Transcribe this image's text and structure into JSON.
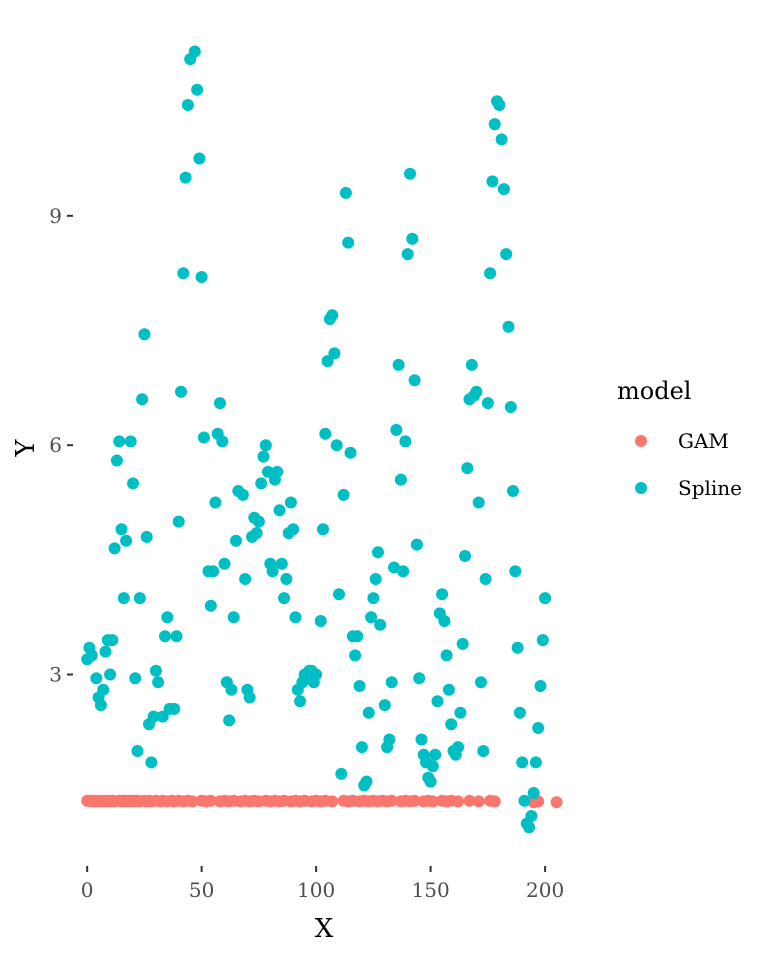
{
  "chart_data": {
    "type": "scatter",
    "xlabel": "X",
    "ylabel": "Y",
    "xlim": [
      -4,
      210
    ],
    "ylim": [
      0.6,
      11.3
    ],
    "x_ticks": [
      0,
      50,
      100,
      150,
      200
    ],
    "y_ticks": [
      3,
      6,
      9
    ],
    "grid": false,
    "legend": {
      "title": "model",
      "position": "right"
    },
    "series": [
      {
        "name": "GAM",
        "color": "#F8766D",
        "points": [
          [
            0,
            1.35
          ],
          [
            1,
            1.35
          ],
          [
            2,
            1.34
          ],
          [
            3,
            1.35
          ],
          [
            4,
            1.34
          ],
          [
            5,
            1.35
          ],
          [
            6,
            1.34
          ],
          [
            7,
            1.35
          ],
          [
            8,
            1.34
          ],
          [
            9,
            1.35
          ],
          [
            10,
            1.34
          ],
          [
            11,
            1.35
          ],
          [
            12,
            1.34
          ],
          [
            14,
            1.35
          ],
          [
            15,
            1.34
          ],
          [
            16,
            1.35
          ],
          [
            17,
            1.34
          ],
          [
            18,
            1.35
          ],
          [
            19,
            1.34
          ],
          [
            20,
            1.35
          ],
          [
            21,
            1.34
          ],
          [
            22,
            1.35
          ],
          [
            23,
            1.34
          ],
          [
            25,
            1.35
          ],
          [
            26,
            1.34
          ],
          [
            27,
            1.35
          ],
          [
            28,
            1.34
          ],
          [
            30,
            1.35
          ],
          [
            32,
            1.34
          ],
          [
            33,
            1.35
          ],
          [
            35,
            1.34
          ],
          [
            37,
            1.35
          ],
          [
            38,
            1.34
          ],
          [
            40,
            1.35
          ],
          [
            42,
            1.34
          ],
          [
            44,
            1.35
          ],
          [
            46,
            1.34
          ],
          [
            50,
            1.35
          ],
          [
            52,
            1.34
          ],
          [
            54,
            1.35
          ],
          [
            58,
            1.34
          ],
          [
            60,
            1.35
          ],
          [
            62,
            1.34
          ],
          [
            64,
            1.35
          ],
          [
            67,
            1.34
          ],
          [
            69,
            1.35
          ],
          [
            71,
            1.34
          ],
          [
            73,
            1.35
          ],
          [
            75,
            1.34
          ],
          [
            78,
            1.35
          ],
          [
            80,
            1.34
          ],
          [
            82,
            1.35
          ],
          [
            84,
            1.34
          ],
          [
            86,
            1.35
          ],
          [
            89,
            1.34
          ],
          [
            91,
            1.35
          ],
          [
            93,
            1.34
          ],
          [
            95,
            1.35
          ],
          [
            98,
            1.34
          ],
          [
            100,
            1.35
          ],
          [
            102,
            1.34
          ],
          [
            104,
            1.35
          ],
          [
            107,
            1.34
          ],
          [
            112,
            1.35
          ],
          [
            114,
            1.34
          ],
          [
            116,
            1.35
          ],
          [
            119,
            1.34
          ],
          [
            121,
            1.35
          ],
          [
            123,
            1.34
          ],
          [
            125,
            1.35
          ],
          [
            127,
            1.34
          ],
          [
            129,
            1.35
          ],
          [
            131,
            1.34
          ],
          [
            133,
            1.35
          ],
          [
            137,
            1.34
          ],
          [
            139,
            1.35
          ],
          [
            141,
            1.34
          ],
          [
            143,
            1.35
          ],
          [
            147,
            1.34
          ],
          [
            149,
            1.35
          ],
          [
            151,
            1.34
          ],
          [
            155,
            1.35
          ],
          [
            157,
            1.34
          ],
          [
            159,
            1.35
          ],
          [
            162,
            1.34
          ],
          [
            167,
            1.35
          ],
          [
            171,
            1.34
          ],
          [
            176,
            1.35
          ],
          [
            178,
            1.34
          ],
          [
            195,
            1.33
          ],
          [
            197,
            1.34
          ],
          [
            205,
            1.33
          ]
        ]
      },
      {
        "name": "Spline",
        "color": "#00BFC4",
        "points": [
          [
            0,
            3.2
          ],
          [
            1,
            3.35
          ],
          [
            2,
            3.25
          ],
          [
            4,
            2.95
          ],
          [
            5,
            2.7
          ],
          [
            6,
            2.6
          ],
          [
            7,
            2.8
          ],
          [
            8,
            3.3
          ],
          [
            9,
            3.45
          ],
          [
            10,
            3.0
          ],
          [
            11,
            3.45
          ],
          [
            12,
            4.65
          ],
          [
            13,
            5.8
          ],
          [
            14,
            6.05
          ],
          [
            15,
            4.9
          ],
          [
            16,
            4.0
          ],
          [
            17,
            4.75
          ],
          [
            19,
            6.05
          ],
          [
            20,
            5.5
          ],
          [
            21,
            2.95
          ],
          [
            22,
            2.0
          ],
          [
            23,
            4.0
          ],
          [
            24,
            6.6
          ],
          [
            25,
            7.45
          ],
          [
            26,
            4.8
          ],
          [
            27,
            2.35
          ],
          [
            28,
            1.85
          ],
          [
            29,
            2.45
          ],
          [
            30,
            3.05
          ],
          [
            31,
            2.9
          ],
          [
            33,
            2.45
          ],
          [
            34,
            3.5
          ],
          [
            35,
            3.75
          ],
          [
            36,
            2.55
          ],
          [
            38,
            2.55
          ],
          [
            39,
            3.5
          ],
          [
            40,
            5.0
          ],
          [
            41,
            6.7
          ],
          [
            42,
            8.25
          ],
          [
            43,
            9.5
          ],
          [
            44,
            10.45
          ],
          [
            45,
            11.05
          ],
          [
            47,
            11.15
          ],
          [
            48,
            10.65
          ],
          [
            49,
            9.75
          ],
          [
            50,
            8.2
          ],
          [
            51,
            6.1
          ],
          [
            53,
            4.35
          ],
          [
            54,
            3.9
          ],
          [
            55,
            4.35
          ],
          [
            56,
            5.25
          ],
          [
            57,
            6.15
          ],
          [
            58,
            6.55
          ],
          [
            59,
            6.05
          ],
          [
            60,
            4.45
          ],
          [
            61,
            2.9
          ],
          [
            62,
            2.4
          ],
          [
            63,
            2.8
          ],
          [
            64,
            3.75
          ],
          [
            65,
            4.75
          ],
          [
            66,
            5.4
          ],
          [
            68,
            5.35
          ],
          [
            69,
            4.25
          ],
          [
            70,
            2.8
          ],
          [
            71,
            2.7
          ],
          [
            72,
            4.8
          ],
          [
            73,
            5.05
          ],
          [
            74,
            4.85
          ],
          [
            75,
            5.0
          ],
          [
            76,
            5.5
          ],
          [
            77,
            5.85
          ],
          [
            78,
            6.0
          ],
          [
            79,
            5.65
          ],
          [
            80,
            4.45
          ],
          [
            81,
            4.35
          ],
          [
            82,
            5.55
          ],
          [
            83,
            5.65
          ],
          [
            84,
            5.15
          ],
          [
            85,
            4.45
          ],
          [
            86,
            4.0
          ],
          [
            87,
            4.25
          ],
          [
            88,
            4.85
          ],
          [
            89,
            5.25
          ],
          [
            90,
            4.9
          ],
          [
            91,
            3.75
          ],
          [
            92,
            2.8
          ],
          [
            93,
            2.65
          ],
          [
            94,
            2.9
          ],
          [
            95,
            3.0
          ],
          [
            96,
            2.95
          ],
          [
            97,
            3.05
          ],
          [
            98,
            3.05
          ],
          [
            99,
            2.9
          ],
          [
            100,
            3.0
          ],
          [
            102,
            3.7
          ],
          [
            103,
            4.9
          ],
          [
            104,
            6.15
          ],
          [
            105,
            7.1
          ],
          [
            106,
            7.65
          ],
          [
            107,
            7.7
          ],
          [
            108,
            7.2
          ],
          [
            109,
            6.0
          ],
          [
            110,
            4.05
          ],
          [
            111,
            1.7
          ],
          [
            112,
            5.35
          ],
          [
            113,
            9.3
          ],
          [
            114,
            8.65
          ],
          [
            115,
            5.9
          ],
          [
            116,
            3.5
          ],
          [
            117,
            3.25
          ],
          [
            118,
            3.5
          ],
          [
            119,
            2.85
          ],
          [
            120,
            2.05
          ],
          [
            121,
            1.55
          ],
          [
            122,
            1.6
          ],
          [
            123,
            2.5
          ],
          [
            124,
            3.75
          ],
          [
            125,
            4.0
          ],
          [
            126,
            4.25
          ],
          [
            127,
            4.6
          ],
          [
            128,
            3.65
          ],
          [
            130,
            2.6
          ],
          [
            131,
            2.05
          ],
          [
            132,
            2.15
          ],
          [
            133,
            2.9
          ],
          [
            134,
            4.4
          ],
          [
            135,
            6.2
          ],
          [
            136,
            7.05
          ],
          [
            137,
            5.55
          ],
          [
            138,
            4.35
          ],
          [
            139,
            6.05
          ],
          [
            140,
            8.5
          ],
          [
            141,
            9.55
          ],
          [
            142,
            8.7
          ],
          [
            143,
            6.85
          ],
          [
            144,
            4.7
          ],
          [
            145,
            2.95
          ],
          [
            146,
            2.15
          ],
          [
            147,
            1.95
          ],
          [
            148,
            1.85
          ],
          [
            149,
            1.65
          ],
          [
            150,
            1.6
          ],
          [
            151,
            1.8
          ],
          [
            152,
            1.95
          ],
          [
            153,
            2.65
          ],
          [
            154,
            3.8
          ],
          [
            155,
            4.05
          ],
          [
            156,
            3.7
          ],
          [
            157,
            3.25
          ],
          [
            158,
            2.8
          ],
          [
            159,
            2.35
          ],
          [
            160,
            2.0
          ],
          [
            161,
            1.95
          ],
          [
            162,
            2.05
          ],
          [
            163,
            2.5
          ],
          [
            164,
            3.4
          ],
          [
            165,
            4.55
          ],
          [
            166,
            5.7
          ],
          [
            167,
            6.6
          ],
          [
            168,
            7.05
          ],
          [
            169,
            6.65
          ],
          [
            170,
            6.7
          ],
          [
            171,
            5.25
          ],
          [
            172,
            2.9
          ],
          [
            173,
            2.0
          ],
          [
            174,
            4.25
          ],
          [
            175,
            6.55
          ],
          [
            176,
            8.25
          ],
          [
            177,
            9.45
          ],
          [
            178,
            10.2
          ],
          [
            179,
            10.5
          ],
          [
            180,
            10.45
          ],
          [
            181,
            10.0
          ],
          [
            182,
            9.35
          ],
          [
            183,
            8.5
          ],
          [
            184,
            7.55
          ],
          [
            185,
            6.5
          ],
          [
            186,
            5.4
          ],
          [
            187,
            4.35
          ],
          [
            188,
            3.35
          ],
          [
            189,
            2.5
          ],
          [
            190,
            1.85
          ],
          [
            191,
            1.35
          ],
          [
            192,
            1.05
          ],
          [
            193,
            1.0
          ],
          [
            194,
            1.15
          ],
          [
            195,
            1.45
          ],
          [
            196,
            1.85
          ],
          [
            197,
            2.3
          ],
          [
            198,
            2.85
          ],
          [
            199,
            3.45
          ],
          [
            200,
            4.0
          ]
        ]
      }
    ]
  }
}
